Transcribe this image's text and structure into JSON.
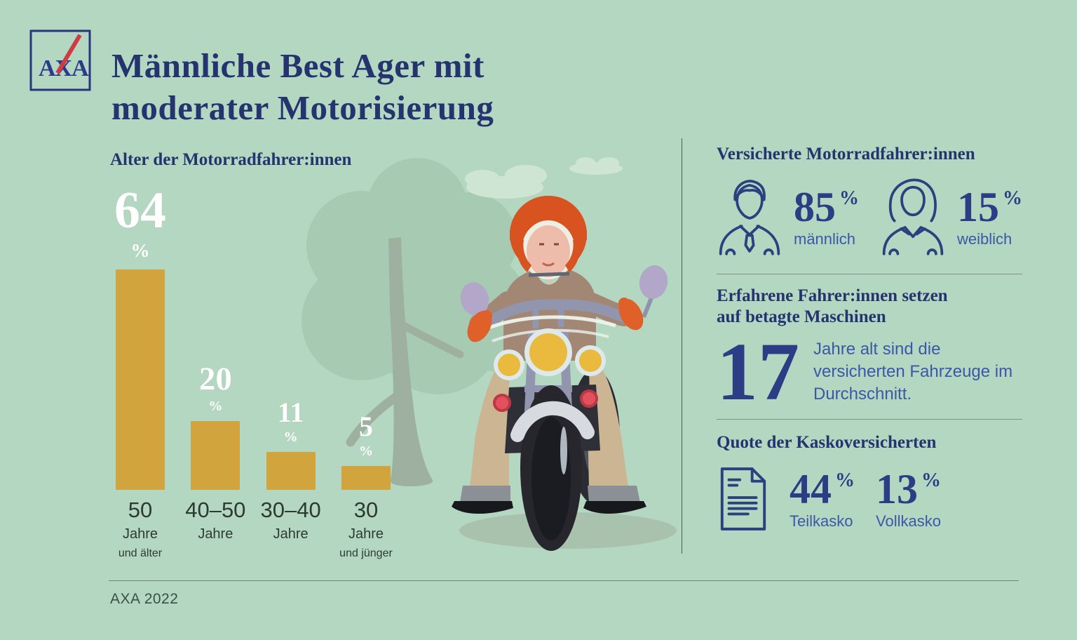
{
  "meta": {
    "brand": "AXA",
    "footer": "AXA 2022"
  },
  "title": {
    "line1": "Männliche Best Ager mit",
    "line2": "moderater Motorisierung"
  },
  "chart_data": {
    "type": "bar",
    "title": "Alter der Motorradfahrer:innen",
    "categories": [
      "50 Jahre und älter",
      "40–50 Jahre",
      "30–40 Jahre",
      "30 Jahre und jünger"
    ],
    "values": [
      64,
      20,
      11,
      5
    ],
    "unit": "%",
    "value_labels_shown": true,
    "grid": false,
    "bar_color": "#d2a43e",
    "value_label_color": "#ffffff",
    "category_lines": [
      {
        "main": "50",
        "sub": "Jahre",
        "note": "und älter"
      },
      {
        "main": "40–50",
        "sub": "Jahre",
        "note": ""
      },
      {
        "main": "30–40",
        "sub": "Jahre",
        "note": ""
      },
      {
        "main": "30",
        "sub": "Jahre",
        "note": "und jünger"
      }
    ]
  },
  "right": {
    "insured": {
      "heading": "Versicherte Motorradfahrer:innen",
      "male": {
        "icon": "male-person-icon",
        "value": "85",
        "unit": "%",
        "label": "männlich"
      },
      "female": {
        "icon": "female-person-icon",
        "value": "15",
        "unit": "%",
        "label": "weiblich"
      }
    },
    "experienced": {
      "heading_line1": "Erfahrene Fahrer:innen setzen",
      "heading_line2": "auf betagte Maschinen",
      "value": "17",
      "description": "Jahre alt sind die versicherten Fahrzeuge im Durchschnitt."
    },
    "kasko": {
      "heading": "Quote der Kaskoversicherten",
      "icon": "insurance-document-icon",
      "teil": {
        "value": "44",
        "unit": "%",
        "label": "Teilkasko"
      },
      "voll": {
        "value": "13",
        "unit": "%",
        "label": "Vollkasko"
      }
    }
  },
  "colors": {
    "bg": "#b4d7c1",
    "navy": "#25346f",
    "number-navy": "#2d3d85",
    "label-blue": "#3d57a6",
    "icon-stroke": "#2c3f7f",
    "chart-label": "#2d3a31",
    "footer-text": "#3c5045",
    "divider": "#4c5e52",
    "logo-red": "#cf3a45",
    "bar-gold": "#d2a43e",
    "tree-green": "#a7cbb2",
    "trunk-green": "#9eb1a0",
    "cloud-green": "#cfe5d3",
    "helmet-orange": "#d8531f",
    "jacket-tan": "#a28874",
    "pants-khaki": "#ccb592"
  }
}
